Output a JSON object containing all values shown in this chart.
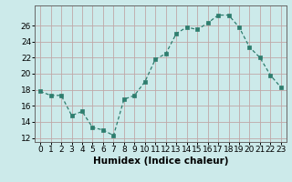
{
  "x": [
    0,
    1,
    2,
    3,
    4,
    5,
    6,
    7,
    8,
    9,
    10,
    11,
    12,
    13,
    14,
    15,
    16,
    17,
    18,
    19,
    20,
    21,
    22,
    23
  ],
  "y": [
    17.8,
    17.3,
    17.3,
    14.8,
    15.3,
    13.3,
    13.0,
    12.3,
    16.8,
    17.3,
    19.0,
    21.8,
    22.5,
    25.0,
    25.8,
    25.5,
    26.3,
    27.3,
    27.3,
    25.8,
    23.3,
    22.0,
    19.8,
    18.3
  ],
  "xlabel": "Humidex (Indice chaleur)",
  "line_color": "#2e7d6e",
  "marker": "s",
  "marker_size": 2.5,
  "background_color": "#cceaea",
  "grid_color": "#c0a8a8",
  "xlim": [
    -0.5,
    23.5
  ],
  "ylim": [
    11.5,
    28.5
  ],
  "yticks": [
    12,
    14,
    16,
    18,
    20,
    22,
    24,
    26
  ],
  "xticks": [
    0,
    1,
    2,
    3,
    4,
    5,
    6,
    7,
    8,
    9,
    10,
    11,
    12,
    13,
    14,
    15,
    16,
    17,
    18,
    19,
    20,
    21,
    22,
    23
  ],
  "xlabel_fontsize": 7.5,
  "tick_fontsize": 6.5
}
